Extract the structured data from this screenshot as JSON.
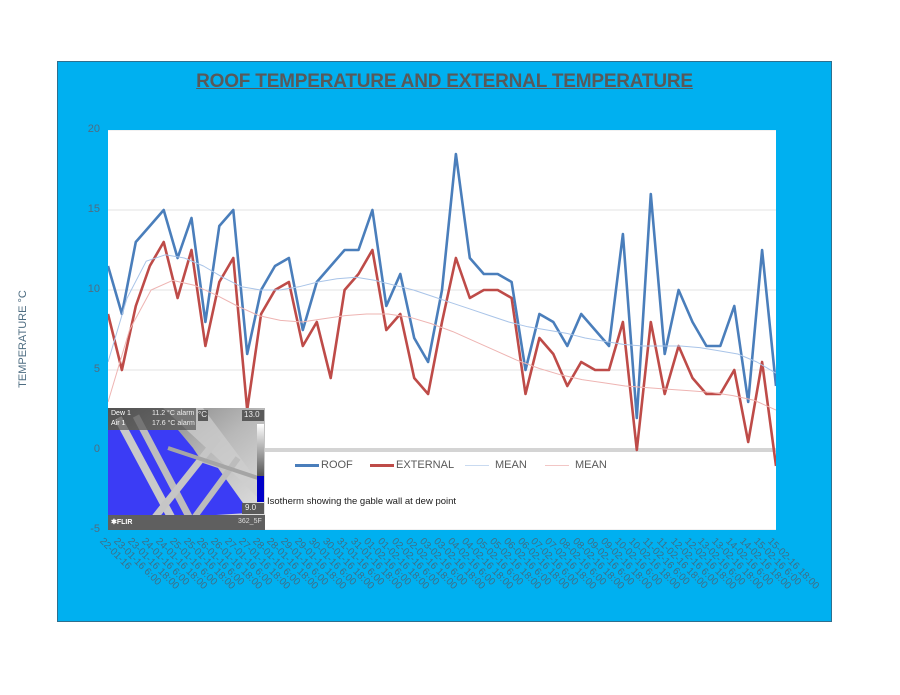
{
  "chart_data": {
    "type": "line",
    "title": "ROOF TEMPERATURE AND EXTERNAL TEMPERATURE",
    "xlabel": "",
    "ylabel": "TEMPERATURE °C",
    "ylim": [
      -5,
      20
    ],
    "yticks": [
      20,
      15,
      10,
      5,
      0,
      -5
    ],
    "grid": true,
    "legend_position": "bottom",
    "x": [
      "22-01-16",
      "23-01-16 6:00",
      "23-01-16 18:00",
      "24-01-16 6:00",
      "24-01-16 18:00",
      "25-01-16 6:00",
      "25-01-16 18:00",
      "26-01-16 6:00",
      "26-01-16 18:00",
      "27-01-16 6:00",
      "27-01-16 18:00",
      "28-01-16 6:00",
      "28-01-16 18:00",
      "29-01-16 6:00",
      "29-01-16 18:00",
      "30-01-16 6:00",
      "30-01-16 18:00",
      "31-01-16 6:00",
      "31-01-16 18:00",
      "01-02-16 6:00",
      "01-02-16 18:00",
      "02-02-16 6:00",
      "02-02-16 18:00",
      "03-02-16 6:00",
      "03-02-16 18:00",
      "04-02-16 6:00",
      "04-02-16 18:00",
      "05-02-16 6:00",
      "05-02-16 18:00",
      "06-02-16 6:00",
      "06-02-16 18:00",
      "07-02-16 6:00",
      "07-02-16 18:00",
      "08-02-16 6:00",
      "08-02-16 18:00",
      "09-02-16 6:00",
      "09-02-16 18:00",
      "10-02-16 6:00",
      "10-02-16 18:00",
      "11-02-16 6:00",
      "11-02-16 18:00",
      "12-02-16 6:00",
      "12-02-16 18:00",
      "13-02-16 6:00",
      "13-02-16 18:00",
      "14-02-16 6:00",
      "14-02-16 18:00",
      "15-02-16 6:00",
      "15-02-16 18:00"
    ],
    "series": [
      {
        "name": "ROOF",
        "color": "#4a7ebb",
        "values": [
          11.5,
          8.5,
          13.0,
          14.0,
          15.0,
          12.0,
          14.5,
          8.0,
          14.0,
          15.0,
          6.0,
          10.0,
          11.5,
          12.0,
          7.5,
          10.5,
          11.5,
          12.5,
          12.5,
          15.0,
          9.0,
          11.0,
          7.0,
          5.5,
          10.0,
          18.5,
          12.0,
          11.0,
          11.0,
          10.5,
          5.0,
          8.5,
          8.0,
          6.5,
          8.5,
          7.5,
          6.5,
          13.5,
          2.0,
          16.0,
          6.0,
          10.0,
          8.0,
          6.5,
          6.5,
          9.0,
          3.0,
          12.5,
          4.0
        ]
      },
      {
        "name": "EXTERNAL",
        "color": "#be4b48",
        "values": [
          8.5,
          5.0,
          9.0,
          11.5,
          13.0,
          9.5,
          12.5,
          6.5,
          10.5,
          12.0,
          2.5,
          8.5,
          10.0,
          10.5,
          6.5,
          8.0,
          4.5,
          10.0,
          11.0,
          12.5,
          7.5,
          8.5,
          4.5,
          3.5,
          8.0,
          12.0,
          9.5,
          10.0,
          10.0,
          9.5,
          3.5,
          7.0,
          6.0,
          4.0,
          5.5,
          5.0,
          5.0,
          8.0,
          0.0,
          8.0,
          3.5,
          6.5,
          4.5,
          3.5,
          3.5,
          5.0,
          0.5,
          5.5,
          -1.0
        ]
      },
      {
        "name": "MEAN",
        "color": "#a9c4e8",
        "style": "thin trend of ROOF",
        "values": [
          5.5,
          9.5,
          11.8,
          12.2,
          12.0,
          11.5,
          10.8,
          10.2,
          10.0,
          10.0,
          10.2,
          10.5,
          10.7,
          10.8,
          10.6,
          10.3,
          10.0,
          9.6,
          9.2,
          8.8,
          8.4,
          8.0,
          7.7,
          7.5,
          7.3,
          7.0,
          6.8,
          6.6,
          6.5,
          6.5,
          6.5,
          6.4,
          6.2,
          6.0,
          5.5,
          4.8
        ]
      },
      {
        "name": "MEAN",
        "color": "#eeb4b2",
        "style": "thin trend of EXTERNAL",
        "values": [
          3.0,
          7.5,
          10.0,
          10.6,
          10.3,
          9.7,
          9.0,
          8.4,
          8.1,
          8.0,
          8.2,
          8.4,
          8.5,
          8.5,
          8.3,
          7.9,
          7.4,
          6.8,
          6.2,
          5.6,
          5.1,
          4.7,
          4.4,
          4.2,
          4.0,
          3.9,
          3.8,
          3.7,
          3.6,
          3.4,
          3.1,
          2.5
        ]
      }
    ],
    "annotations": [
      "Isotherm showing the gable wall at dew point"
    ]
  },
  "inset": {
    "caption": "Isotherm showing the gable wall at dew point",
    "row1_label": "Dew 1",
    "row1_value": "11.2 °C alarm",
    "row2_label": "Air 1",
    "row2_value": "17.6 °C alarm",
    "unit": "°C",
    "scale_max": "13.0",
    "scale_min": "9.0",
    "brand": "FLIR",
    "corner_tag": "362_5F"
  },
  "colors": {
    "frame": "#00b0f0",
    "title": "#595959",
    "roof": "#4a7ebb",
    "external": "#be4b48",
    "isotherm": "#3a3aff"
  }
}
